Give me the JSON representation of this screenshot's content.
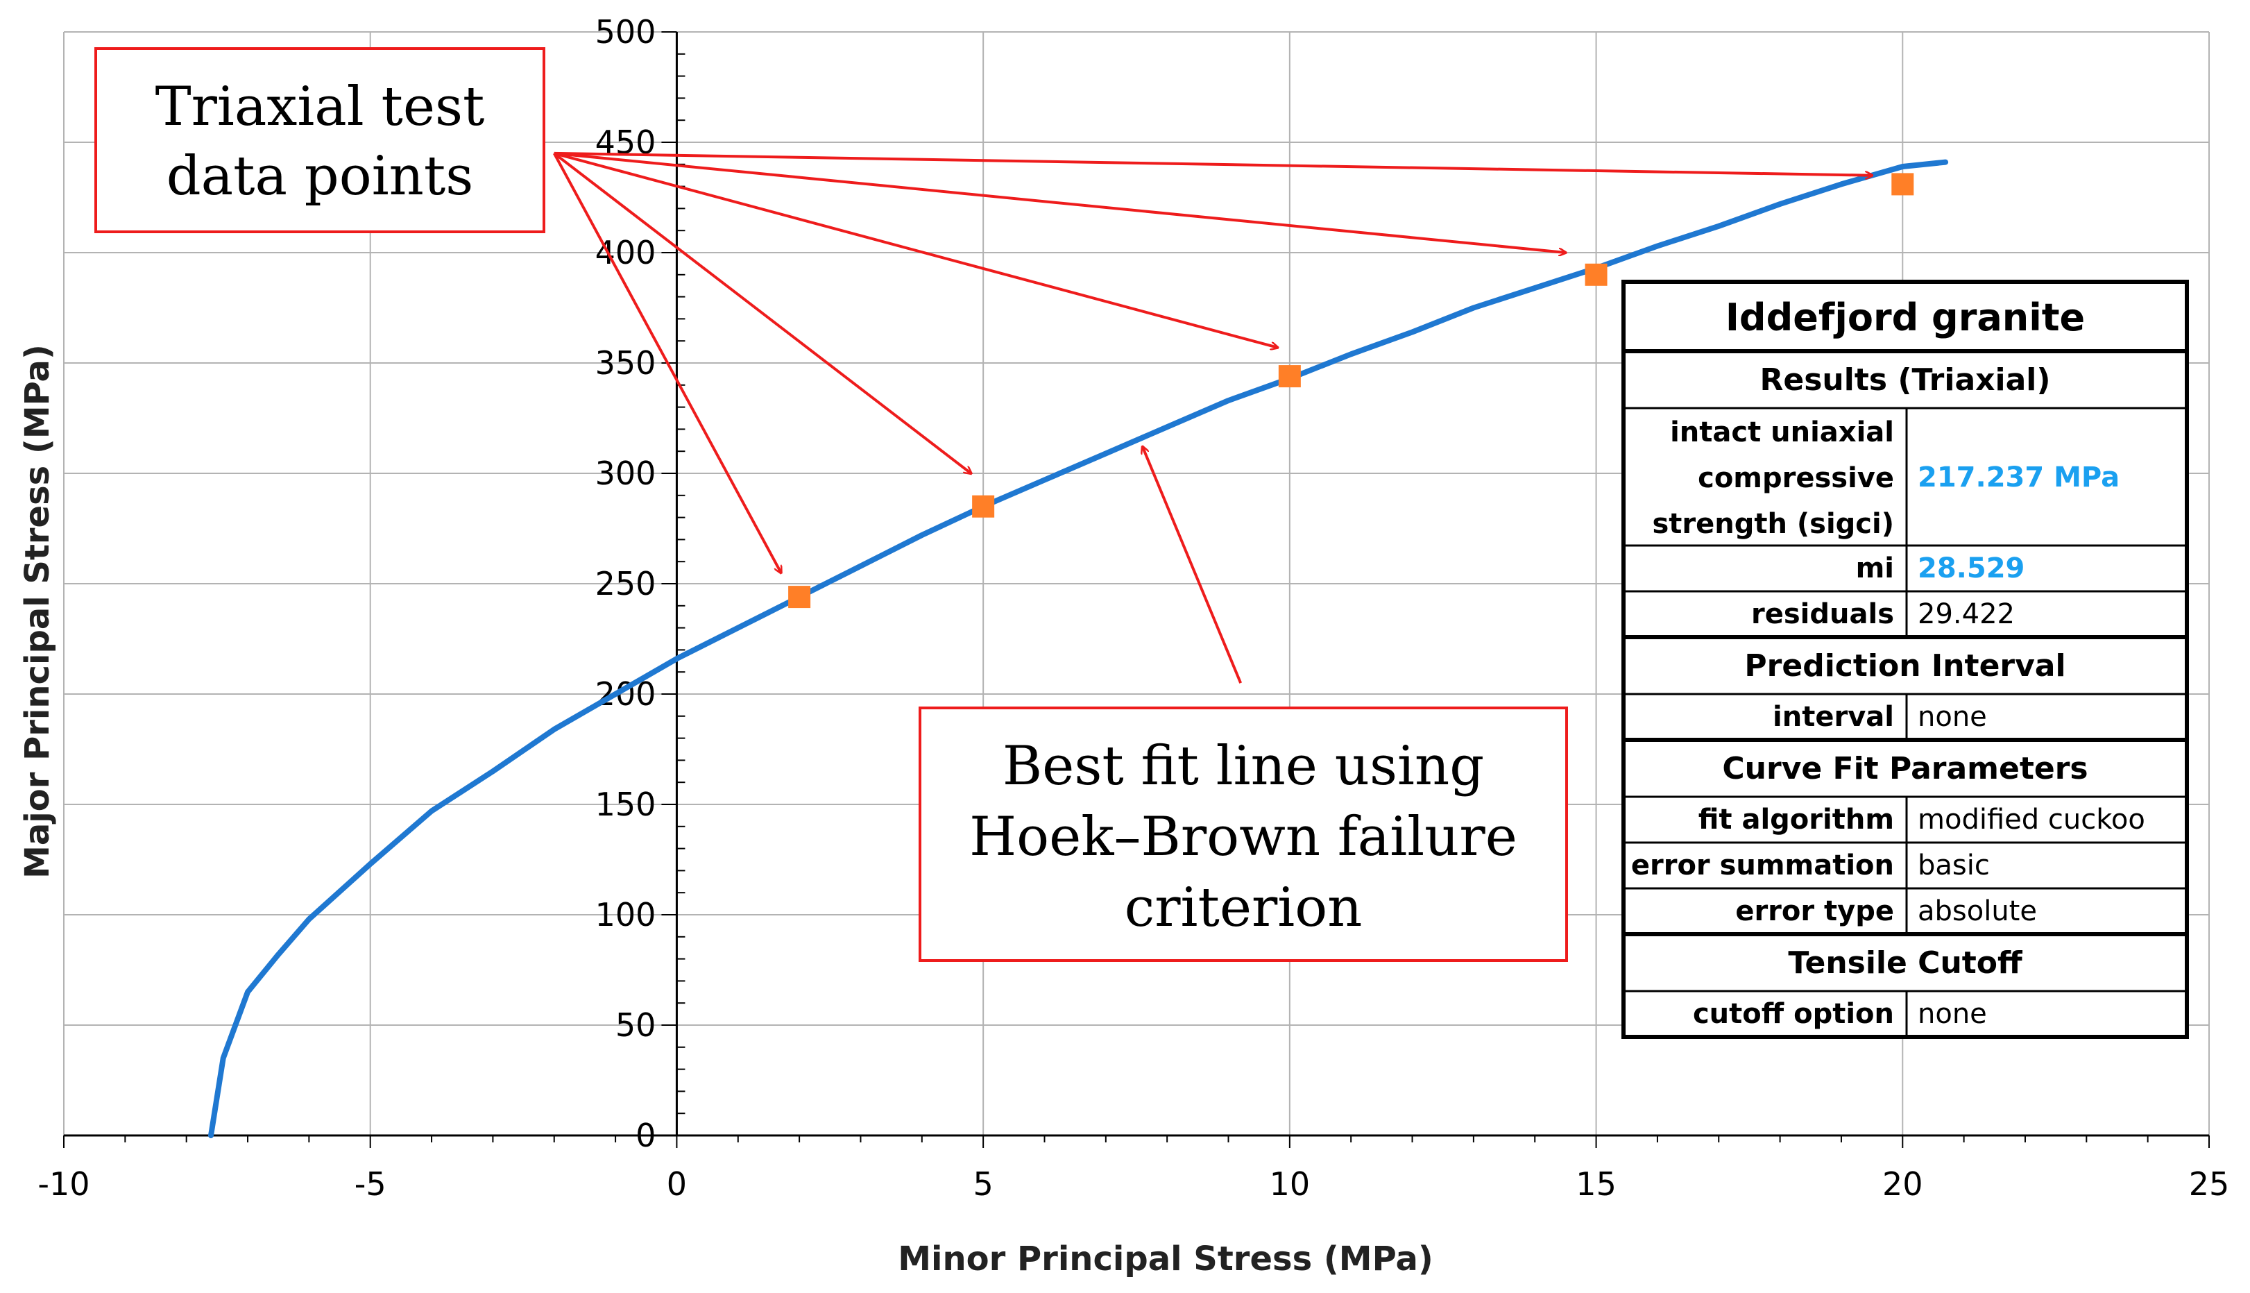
{
  "colors": {
    "curve": "#1f78d1",
    "marker": "#ff7f27",
    "annotation": "#ee1c1c",
    "grid": "#b3b3b3",
    "table_highlight": "#1aa0f0"
  },
  "chart_data": {
    "type": "scatter",
    "xlabel": "Minor Principal Stress (MPa)",
    "ylabel": "Major Principal Stress (MPa)",
    "xlim": [
      -10,
      25
    ],
    "ylim": [
      0,
      500
    ],
    "x_ticks": [
      -10,
      -5,
      0,
      5,
      10,
      15,
      20,
      25
    ],
    "x_tick_labels": [
      "-10",
      "-5",
      "0",
      "5",
      "10",
      "15",
      "20",
      "25"
    ],
    "y_ticks": [
      0,
      50,
      100,
      150,
      200,
      250,
      300,
      350,
      400,
      450,
      500
    ],
    "y_tick_labels": [
      "0",
      "50",
      "100",
      "150",
      "200",
      "250",
      "300",
      "350",
      "400",
      "450",
      "500"
    ],
    "grid": true,
    "series": [
      {
        "kind": "line",
        "x": [
          -7.6,
          -7.4,
          -7.0,
          -6.5,
          -6.0,
          -5.0,
          -4.0,
          -3.0,
          -2.0,
          -1.0,
          0.0,
          1.0,
          2.0,
          3.0,
          4.0,
          5.0,
          6.0,
          7.0,
          8.0,
          9.0,
          10.0,
          11.0,
          12.0,
          13.0,
          14.0,
          15.0,
          16.0,
          17.0,
          18.0,
          19.0,
          20.0,
          20.7
        ],
        "y": [
          0,
          35,
          65,
          82,
          98,
          123,
          147,
          165,
          184,
          200,
          216,
          230,
          244,
          258,
          272,
          285,
          297,
          309,
          321,
          333,
          343,
          354,
          364,
          375,
          384,
          393,
          403,
          412,
          422,
          431,
          439,
          441
        ]
      },
      {
        "kind": "points",
        "x": [
          2,
          5,
          10,
          15,
          20
        ],
        "y": [
          244,
          285,
          344,
          390,
          431
        ]
      }
    ],
    "annotations": [
      {
        "id": "data",
        "lines": [
          "Triaxial test",
          "data points"
        ],
        "origin": [
          -2,
          445
        ],
        "arrow_targets": [
          [
            1.7,
            255
          ],
          [
            4.8,
            300
          ],
          [
            9.8,
            357
          ],
          [
            14.5,
            400
          ],
          [
            19.5,
            435
          ]
        ]
      },
      {
        "id": "fit",
        "lines": [
          "Best fit line using",
          "Hoek–Brown failure",
          "criterion"
        ],
        "origin": [
          9.2,
          205
        ],
        "arrow_targets": [
          [
            7.6,
            312
          ]
        ]
      }
    ]
  },
  "results_table": {
    "title": "Iddefjord granite",
    "sections": [
      {
        "header": "Results (Triaxial)",
        "rows": [
          {
            "label": [
              "intact uniaxial",
              "compressive",
              "strength (sigci)"
            ],
            "value": "217.237 MPa",
            "highlight": true
          },
          {
            "label": [
              "mi"
            ],
            "value": "28.529",
            "highlight": true
          },
          {
            "label": [
              "residuals"
            ],
            "value": "29.422",
            "highlight": false
          }
        ]
      },
      {
        "header": "Prediction Interval",
        "rows": [
          {
            "label": [
              "interval"
            ],
            "value": "none",
            "highlight": false
          }
        ]
      },
      {
        "header": "Curve Fit Parameters",
        "rows": [
          {
            "label": [
              "fit algorithm"
            ],
            "value": "modified cuckoo",
            "highlight": false
          },
          {
            "label": [
              "error summation"
            ],
            "value": "basic",
            "highlight": false
          },
          {
            "label": [
              "error type"
            ],
            "value": "absolute",
            "highlight": false
          }
        ]
      },
      {
        "header": "Tensile Cutoff",
        "rows": [
          {
            "label": [
              "cutoff option"
            ],
            "value": "none",
            "highlight": false
          }
        ]
      }
    ]
  }
}
